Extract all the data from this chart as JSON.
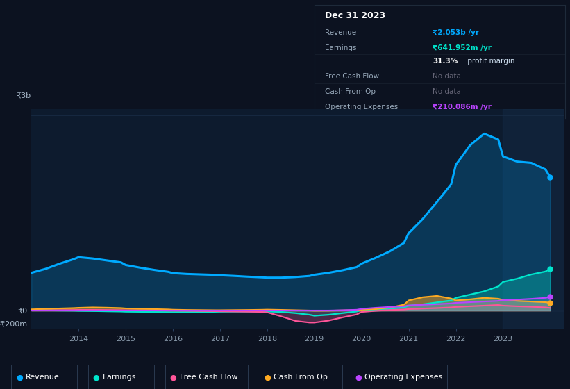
{
  "bg_color": "#0c1220",
  "chart_bg": "#0d1b2e",
  "years": [
    2013.0,
    2013.3,
    2013.6,
    2013.9,
    2014.0,
    2014.3,
    2014.6,
    2014.9,
    2015.0,
    2015.3,
    2015.6,
    2015.9,
    2016.0,
    2016.3,
    2016.6,
    2016.9,
    2017.0,
    2017.3,
    2017.6,
    2017.9,
    2018.0,
    2018.3,
    2018.6,
    2018.9,
    2019.0,
    2019.3,
    2019.6,
    2019.9,
    2020.0,
    2020.3,
    2020.6,
    2020.9,
    2021.0,
    2021.3,
    2021.6,
    2021.9,
    2022.0,
    2022.3,
    2022.6,
    2022.9,
    2023.0,
    2023.3,
    2023.6,
    2023.9,
    2024.0
  ],
  "revenue": [
    580,
    640,
    720,
    790,
    820,
    800,
    770,
    740,
    700,
    660,
    625,
    595,
    575,
    562,
    555,
    548,
    542,
    532,
    520,
    510,
    505,
    505,
    515,
    532,
    550,
    580,
    620,
    668,
    720,
    810,
    910,
    1040,
    1190,
    1410,
    1670,
    1940,
    2240,
    2540,
    2720,
    2630,
    2370,
    2290,
    2270,
    2170,
    2053
  ],
  "earnings": [
    5,
    2,
    0,
    -2,
    -5,
    -8,
    -12,
    -15,
    -18,
    -20,
    -22,
    -24,
    -25,
    -24,
    -22,
    -20,
    -18,
    -16,
    -15,
    -14,
    -15,
    -22,
    -40,
    -65,
    -80,
    -65,
    -40,
    -15,
    5,
    15,
    28,
    48,
    75,
    95,
    125,
    155,
    195,
    245,
    295,
    370,
    440,
    490,
    555,
    600,
    642
  ],
  "free_cash_flow": [
    2,
    4,
    6,
    8,
    10,
    10,
    8,
    6,
    4,
    2,
    0,
    -2,
    -3,
    -5,
    -8,
    -10,
    -12,
    -15,
    -18,
    -22,
    -28,
    -90,
    -160,
    -185,
    -185,
    -155,
    -105,
    -60,
    -22,
    -5,
    8,
    15,
    22,
    30,
    38,
    48,
    55,
    65,
    75,
    85,
    75,
    65,
    58,
    48,
    40
  ],
  "cash_from_op": [
    18,
    25,
    32,
    38,
    42,
    48,
    44,
    38,
    32,
    26,
    22,
    17,
    13,
    9,
    7,
    5,
    5,
    7,
    9,
    12,
    14,
    10,
    5,
    0,
    -3,
    -2,
    2,
    7,
    12,
    22,
    45,
    90,
    155,
    205,
    225,
    185,
    155,
    172,
    195,
    182,
    162,
    148,
    138,
    128,
    120
  ],
  "operating_expenses": [
    0,
    0,
    0,
    0,
    0,
    0,
    0,
    0,
    0,
    0,
    0,
    0,
    0,
    0,
    0,
    0,
    0,
    0,
    0,
    0,
    0,
    0,
    0,
    0,
    0,
    0,
    5,
    12,
    25,
    42,
    55,
    65,
    78,
    88,
    98,
    108,
    118,
    128,
    138,
    148,
    158,
    168,
    180,
    195,
    210
  ],
  "revenue_color": "#00aaff",
  "earnings_color": "#00e5cc",
  "fcf_color": "#ff5599",
  "cashop_color": "#ffaa22",
  "opex_color": "#bb44ff",
  "ylim_min": -280,
  "ylim_max": 3100,
  "xtick_years": [
    2014,
    2015,
    2016,
    2017,
    2018,
    2019,
    2020,
    2021,
    2022,
    2023
  ],
  "ytick_values": [
    -200,
    0,
    3000
  ],
  "ytick_labels": [
    "-₹200m",
    "₹0",
    "₹3b"
  ],
  "legend_items": [
    "Revenue",
    "Earnings",
    "Free Cash Flow",
    "Cash From Op",
    "Operating Expenses"
  ],
  "legend_colors": [
    "#00aaff",
    "#00e5cc",
    "#ff5599",
    "#ffaa22",
    "#bb44ff"
  ],
  "tooltip_title": "Dec 31 2023",
  "tooltip_rows": [
    {
      "label": "Revenue",
      "value": "₹2.053b /yr",
      "vcolor": "#00aaff",
      "bold": true,
      "suffix": ""
    },
    {
      "label": "Earnings",
      "value": "₹641.952m /yr",
      "vcolor": "#00e5cc",
      "bold": true,
      "suffix": ""
    },
    {
      "label": "",
      "value": "31.3%",
      "vcolor": "#ffffff",
      "bold": true,
      "suffix": " profit margin"
    },
    {
      "label": "Free Cash Flow",
      "value": "No data",
      "vcolor": "#666677",
      "bold": false,
      "suffix": ""
    },
    {
      "label": "Cash From Op",
      "value": "No data",
      "vcolor": "#666677",
      "bold": false,
      "suffix": ""
    },
    {
      "label": "Operating Expenses",
      "value": "₹210.086m /yr",
      "vcolor": "#bb44ff",
      "bold": true,
      "suffix": ""
    }
  ]
}
